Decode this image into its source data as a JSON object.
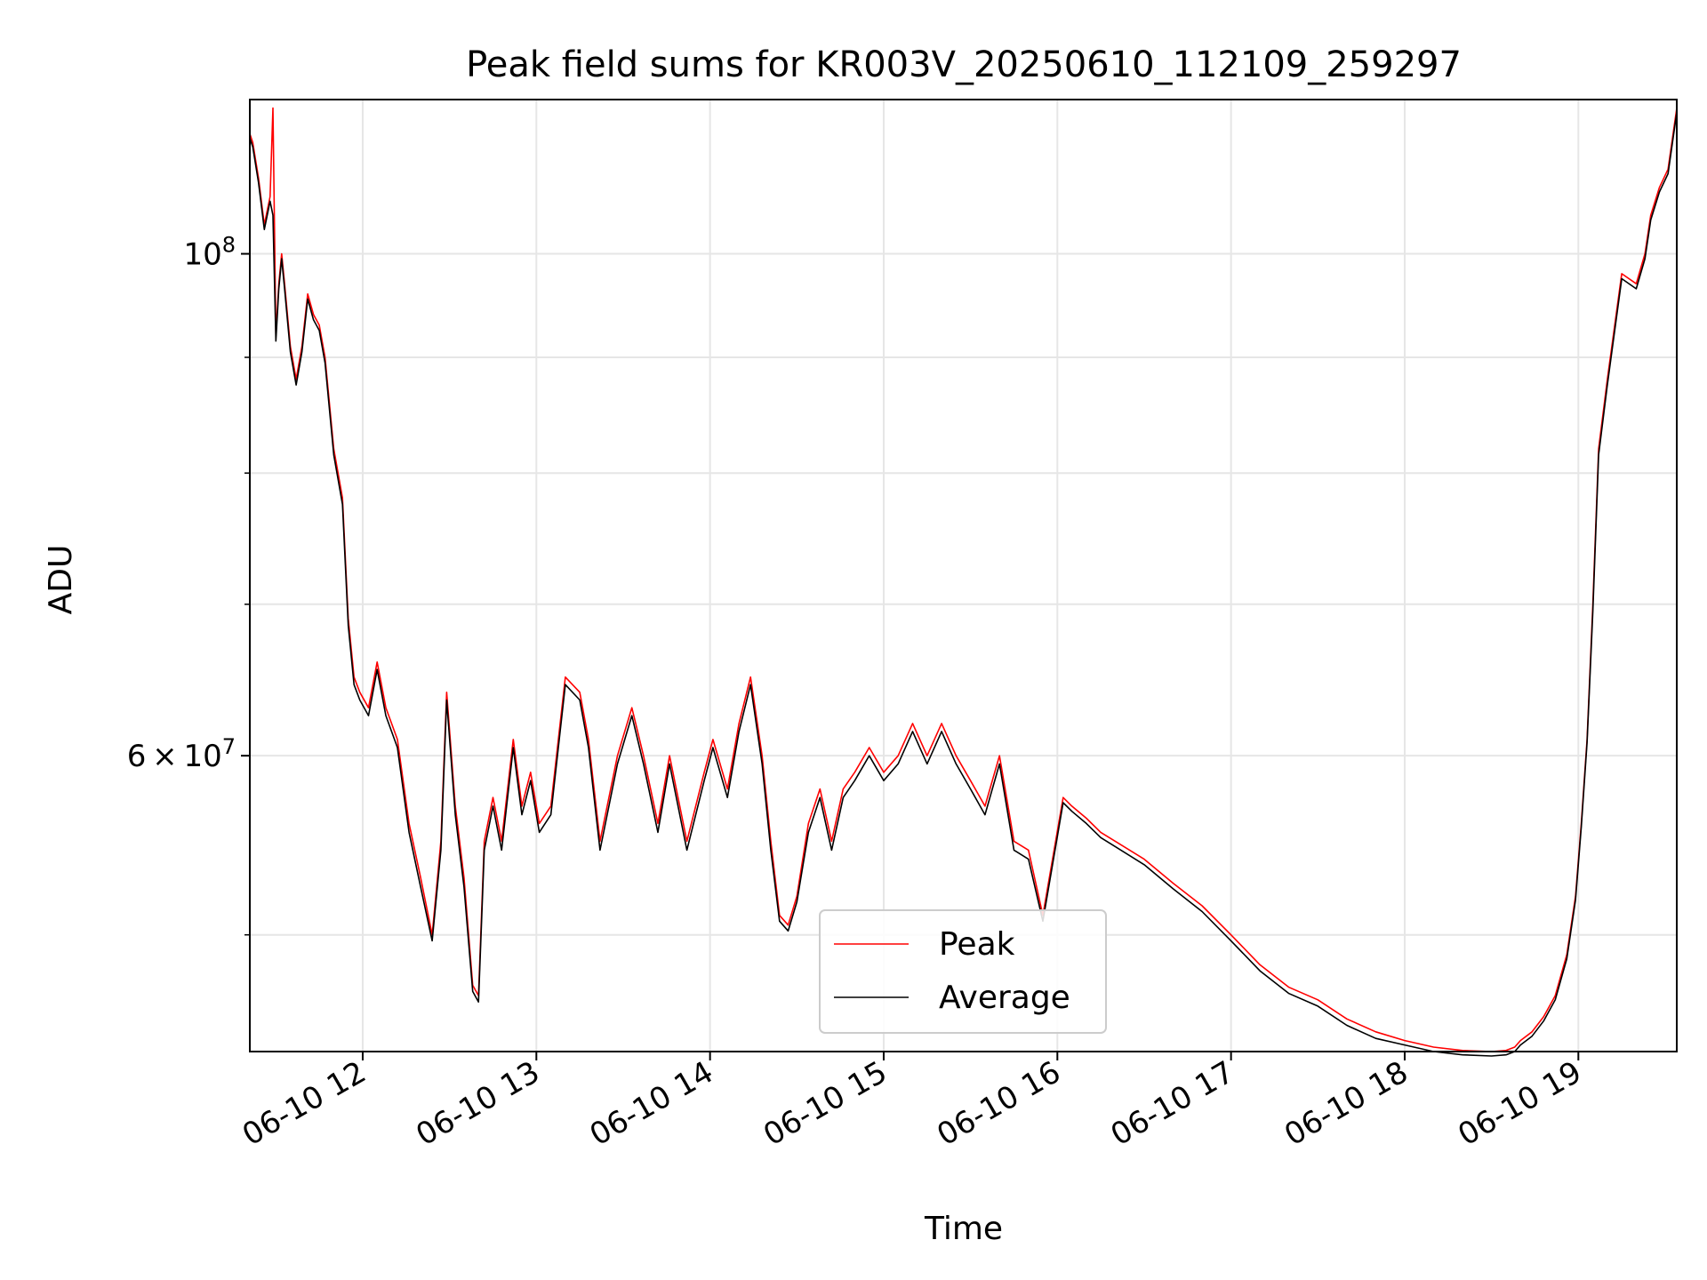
{
  "chart_data": {
    "type": "line",
    "title": "Peak field sums for KR003V_20250610_112109_259297",
    "xlabel": "Time",
    "ylabel": "ADU",
    "x_range": [
      "2025-06-10 11:21",
      "2025-06-10 19:34"
    ],
    "ylim": [
      44400000,
      117000000
    ],
    "yscale": "log",
    "grid": true,
    "legend_position": "lower-center",
    "x_ticks": [
      "06-10 12",
      "06-10 13",
      "06-10 14",
      "06-10 15",
      "06-10 16",
      "06-10 17",
      "06-10 18",
      "06-10 19"
    ],
    "y_ticks": [
      {
        "value": 100000000,
        "base": "10",
        "exp": "8",
        "mantissa": ""
      },
      {
        "value": 60000000,
        "base": "10",
        "exp": "7",
        "mantissa": "6"
      }
    ],
    "minor_y_ticks": [
      50000000,
      70000000,
      80000000,
      90000000
    ],
    "series": [
      {
        "name": "Peak",
        "color": "#ff0000",
        "x": [
          "2025-06-10 11:21",
          "2025-06-10 11:22",
          "2025-06-10 11:24",
          "2025-06-10 11:26",
          "2025-06-10 11:28",
          "2025-06-10 11:29",
          "2025-06-10 11:30",
          "2025-06-10 11:31",
          "2025-06-10 11:32",
          "2025-06-10 11:33",
          "2025-06-10 11:35",
          "2025-06-10 11:37",
          "2025-06-10 11:39",
          "2025-06-10 11:41",
          "2025-06-10 11:43",
          "2025-06-10 11:45",
          "2025-06-10 11:47",
          "2025-06-10 11:50",
          "2025-06-10 11:53",
          "2025-06-10 11:55",
          "2025-06-10 11:57",
          "2025-06-10 11:59",
          "2025-06-10 12:02",
          "2025-06-10 12:05",
          "2025-06-10 12:08",
          "2025-06-10 12:12",
          "2025-06-10 12:16",
          "2025-06-10 12:20",
          "2025-06-10 12:24",
          "2025-06-10 12:27",
          "2025-06-10 12:29",
          "2025-06-10 12:32",
          "2025-06-10 12:35",
          "2025-06-10 12:38",
          "2025-06-10 12:40",
          "2025-06-10 12:42",
          "2025-06-10 12:45",
          "2025-06-10 12:48",
          "2025-06-10 12:52",
          "2025-06-10 12:55",
          "2025-06-10 12:58",
          "2025-06-10 13:01",
          "2025-06-10 13:05",
          "2025-06-10 13:10",
          "2025-06-10 13:15",
          "2025-06-10 13:18",
          "2025-06-10 13:22",
          "2025-06-10 13:28",
          "2025-06-10 13:33",
          "2025-06-10 13:37",
          "2025-06-10 13:42",
          "2025-06-10 13:46",
          "2025-06-10 13:52",
          "2025-06-10 13:58",
          "2025-06-10 14:01",
          "2025-06-10 14:06",
          "2025-06-10 14:10",
          "2025-06-10 14:14",
          "2025-06-10 14:18",
          "2025-06-10 14:21",
          "2025-06-10 14:24",
          "2025-06-10 14:27",
          "2025-06-10 14:30",
          "2025-06-10 14:34",
          "2025-06-10 14:38",
          "2025-06-10 14:42",
          "2025-06-10 14:46",
          "2025-06-10 14:50",
          "2025-06-10 14:55",
          "2025-06-10 15:00",
          "2025-06-10 15:05",
          "2025-06-10 15:10",
          "2025-06-10 15:15",
          "2025-06-10 15:20",
          "2025-06-10 15:25",
          "2025-06-10 15:30",
          "2025-06-10 15:35",
          "2025-06-10 15:40",
          "2025-06-10 15:45",
          "2025-06-10 15:50",
          "2025-06-10 15:55",
          "2025-06-10 16:02",
          "2025-06-10 16:05",
          "2025-06-10 16:10",
          "2025-06-10 16:15",
          "2025-06-10 16:20",
          "2025-06-10 16:30",
          "2025-06-10 16:40",
          "2025-06-10 16:50",
          "2025-06-10 17:00",
          "2025-06-10 17:10",
          "2025-06-10 17:20",
          "2025-06-10 17:30",
          "2025-06-10 17:40",
          "2025-06-10 17:50",
          "2025-06-10 18:00",
          "2025-06-10 18:10",
          "2025-06-10 18:20",
          "2025-06-10 18:30",
          "2025-06-10 18:35",
          "2025-06-10 18:38",
          "2025-06-10 18:40",
          "2025-06-10 18:44",
          "2025-06-10 18:48",
          "2025-06-10 18:52",
          "2025-06-10 18:56",
          "2025-06-10 18:59",
          "2025-06-10 19:01",
          "2025-06-10 19:03",
          "2025-06-10 19:05",
          "2025-06-10 19:07",
          "2025-06-10 19:10",
          "2025-06-10 19:15",
          "2025-06-10 19:20",
          "2025-06-10 19:23",
          "2025-06-10 19:25",
          "2025-06-10 19:28",
          "2025-06-10 19:31",
          "2025-06-10 19:34"
        ],
        "values": [
          113000000,
          112000000,
          108000000,
          103000000,
          106000000,
          116000000,
          92000000,
          97000000,
          100000000,
          97000000,
          91000000,
          88000000,
          91000000,
          96000000,
          94000000,
          93000000,
          90000000,
          82000000,
          78000000,
          69000000,
          65000000,
          64000000,
          63000000,
          66000000,
          63000000,
          61000000,
          56000000,
          53000000,
          50000000,
          55000000,
          64000000,
          57000000,
          53000000,
          47500000,
          47000000,
          55000000,
          57500000,
          55000000,
          61000000,
          57000000,
          59000000,
          56000000,
          57000000,
          65000000,
          64000000,
          61000000,
          55000000,
          60000000,
          63000000,
          60000000,
          56000000,
          60000000,
          55000000,
          59000000,
          61000000,
          58000000,
          62000000,
          65000000,
          60000000,
          55000000,
          51000000,
          50500000,
          52000000,
          56000000,
          58000000,
          55000000,
          58000000,
          59000000,
          60500000,
          59000000,
          60000000,
          62000000,
          60000000,
          62000000,
          60000000,
          58500000,
          57000000,
          60000000,
          55000000,
          54500000,
          51000000,
          57500000,
          57000000,
          56300000,
          55500000,
          55000000,
          54000000,
          52700000,
          51500000,
          50000000,
          48500000,
          47400000,
          46800000,
          45900000,
          45300000,
          44900000,
          44600000,
          44450000,
          44400000,
          44450000,
          44600000,
          44900000,
          45300000,
          46000000,
          47000000,
          49000000,
          52000000,
          56000000,
          61000000,
          70000000,
          82000000,
          88000000,
          98000000,
          97000000,
          100000000,
          104000000,
          107000000,
          109000000,
          116000000
        ]
      },
      {
        "name": "Average",
        "color": "#000000",
        "x": [
          "2025-06-10 11:21",
          "2025-06-10 11:22",
          "2025-06-10 11:24",
          "2025-06-10 11:26",
          "2025-06-10 11:28",
          "2025-06-10 11:29",
          "2025-06-10 11:30",
          "2025-06-10 11:31",
          "2025-06-10 11:32",
          "2025-06-10 11:33",
          "2025-06-10 11:35",
          "2025-06-10 11:37",
          "2025-06-10 11:39",
          "2025-06-10 11:41",
          "2025-06-10 11:43",
          "2025-06-10 11:45",
          "2025-06-10 11:47",
          "2025-06-10 11:50",
          "2025-06-10 11:53",
          "2025-06-10 11:55",
          "2025-06-10 11:57",
          "2025-06-10 11:59",
          "2025-06-10 12:02",
          "2025-06-10 12:05",
          "2025-06-10 12:08",
          "2025-06-10 12:12",
          "2025-06-10 12:16",
          "2025-06-10 12:20",
          "2025-06-10 12:24",
          "2025-06-10 12:27",
          "2025-06-10 12:29",
          "2025-06-10 12:32",
          "2025-06-10 12:35",
          "2025-06-10 12:38",
          "2025-06-10 12:40",
          "2025-06-10 12:42",
          "2025-06-10 12:45",
          "2025-06-10 12:48",
          "2025-06-10 12:52",
          "2025-06-10 12:55",
          "2025-06-10 12:58",
          "2025-06-10 13:01",
          "2025-06-10 13:05",
          "2025-06-10 13:10",
          "2025-06-10 13:15",
          "2025-06-10 13:18",
          "2025-06-10 13:22",
          "2025-06-10 13:28",
          "2025-06-10 13:33",
          "2025-06-10 13:37",
          "2025-06-10 13:42",
          "2025-06-10 13:46",
          "2025-06-10 13:52",
          "2025-06-10 13:58",
          "2025-06-10 14:01",
          "2025-06-10 14:06",
          "2025-06-10 14:10",
          "2025-06-10 14:14",
          "2025-06-10 14:18",
          "2025-06-10 14:21",
          "2025-06-10 14:24",
          "2025-06-10 14:27",
          "2025-06-10 14:30",
          "2025-06-10 14:34",
          "2025-06-10 14:38",
          "2025-06-10 14:42",
          "2025-06-10 14:46",
          "2025-06-10 14:50",
          "2025-06-10 14:55",
          "2025-06-10 15:00",
          "2025-06-10 15:05",
          "2025-06-10 15:10",
          "2025-06-10 15:15",
          "2025-06-10 15:20",
          "2025-06-10 15:25",
          "2025-06-10 15:30",
          "2025-06-10 15:35",
          "2025-06-10 15:40",
          "2025-06-10 15:45",
          "2025-06-10 15:50",
          "2025-06-10 15:55",
          "2025-06-10 16:02",
          "2025-06-10 16:05",
          "2025-06-10 16:10",
          "2025-06-10 16:15",
          "2025-06-10 16:20",
          "2025-06-10 16:30",
          "2025-06-10 16:40",
          "2025-06-10 16:50",
          "2025-06-10 17:00",
          "2025-06-10 17:10",
          "2025-06-10 17:20",
          "2025-06-10 17:30",
          "2025-06-10 17:40",
          "2025-06-10 17:50",
          "2025-06-10 18:00",
          "2025-06-10 18:10",
          "2025-06-10 18:20",
          "2025-06-10 18:30",
          "2025-06-10 18:35",
          "2025-06-10 18:38",
          "2025-06-10 18:40",
          "2025-06-10 18:44",
          "2025-06-10 18:48",
          "2025-06-10 18:52",
          "2025-06-10 18:56",
          "2025-06-10 18:59",
          "2025-06-10 19:01",
          "2025-06-10 19:03",
          "2025-06-10 19:05",
          "2025-06-10 19:07",
          "2025-06-10 19:10",
          "2025-06-10 19:15",
          "2025-06-10 19:20",
          "2025-06-10 19:23",
          "2025-06-10 19:25",
          "2025-06-10 19:28",
          "2025-06-10 19:31",
          "2025-06-10 19:34"
        ],
        "values": [
          112500000,
          111500000,
          107500000,
          102500000,
          105500000,
          104000000,
          91500000,
          96500000,
          99500000,
          96500000,
          90500000,
          87500000,
          90500000,
          95500000,
          93500000,
          92500000,
          89500000,
          81500000,
          77500000,
          68500000,
          64500000,
          63500000,
          62500000,
          65500000,
          62500000,
          60500000,
          55500000,
          52500000,
          49700000,
          54500000,
          63500000,
          56500000,
          52500000,
          47200000,
          46700000,
          54500000,
          57000000,
          54500000,
          60500000,
          56500000,
          58500000,
          55500000,
          56500000,
          64500000,
          63500000,
          60500000,
          54500000,
          59500000,
          62500000,
          59500000,
          55500000,
          59500000,
          54500000,
          58500000,
          60500000,
          57500000,
          61500000,
          64500000,
          59500000,
          54500000,
          50700000,
          50200000,
          51700000,
          55500000,
          57500000,
          54500000,
          57500000,
          58500000,
          60000000,
          58500000,
          59500000,
          61500000,
          59500000,
          61500000,
          59500000,
          58000000,
          56500000,
          59500000,
          54500000,
          54000000,
          50700000,
          57200000,
          56700000,
          56000000,
          55200000,
          54700000,
          53700000,
          52400000,
          51200000,
          49700000,
          48200000,
          47100000,
          46500000,
          45600000,
          45000000,
          44700000,
          44400000,
          44250000,
          44200000,
          44250000,
          44400000,
          44700000,
          45100000,
          45800000,
          46800000,
          48800000,
          51800000,
          55800000,
          60800000,
          69500000,
          81500000,
          87500000,
          97500000,
          96500000,
          99500000,
          103500000,
          106500000,
          108500000,
          115500000
        ]
      }
    ]
  }
}
